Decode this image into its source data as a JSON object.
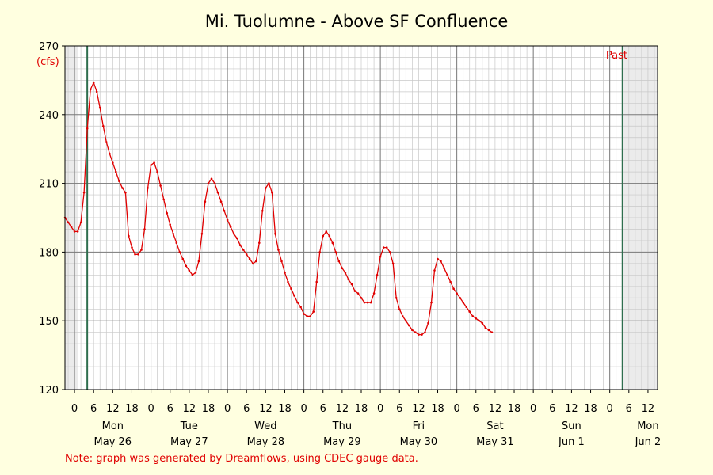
{
  "chart_data": {
    "type": "line",
    "title": "Mi. Tuolumne - Above SF Confluence",
    "ylabel": "(cfs)",
    "xlabel": "",
    "ylim": [
      120,
      270
    ],
    "y_ticks": [
      120,
      150,
      180,
      210,
      240,
      270
    ],
    "x_range_hours": [
      "May 25 21:00",
      "Jun 2 15:00"
    ],
    "hour_tick_labels": [
      "0",
      "6",
      "12",
      "18",
      "0",
      "6",
      "12",
      "18",
      "0",
      "6",
      "12",
      "18",
      "0",
      "6",
      "12",
      "18",
      "0",
      "6",
      "12",
      "18",
      "0",
      "6",
      "12",
      "18",
      "0",
      "6",
      "12",
      "18",
      "0",
      "6",
      "12"
    ],
    "day_labels": [
      {
        "weekday": "Mon",
        "date": "May 26"
      },
      {
        "weekday": "Tue",
        "date": "May 27"
      },
      {
        "weekday": "Wed",
        "date": "May 28"
      },
      {
        "weekday": "Thu",
        "date": "May 29"
      },
      {
        "weekday": "Fri",
        "date": "May 30"
      },
      {
        "weekday": "Sat",
        "date": "May 31"
      },
      {
        "weekday": "Sun",
        "date": "Jun 1"
      },
      {
        "weekday": "Mon",
        "date": "Jun 2"
      }
    ],
    "past_label": "Past",
    "note": "Note: graph was generated by Dreamflows, using CDEC gauge data.",
    "grid": true,
    "colors": {
      "line": "#e00000",
      "background": "#ffffe0",
      "plot_background": "#ffffff",
      "shaded_region": "#ebebeb",
      "marker_lines": "#2e6e4e"
    },
    "shaded_ranges": [
      [
        "May 25 21:00",
        "May 26 01:00"
      ],
      [
        "Jun 2 04:00",
        "Jun 2 15:00"
      ]
    ],
    "vertical_markers": [
      "May 26 04:00",
      "Jun 2 04:00"
    ],
    "series": [
      {
        "points": [
          [
            "May 25 21:00",
            195
          ],
          [
            "May 25 22:00",
            193
          ],
          [
            "May 25 23:00",
            191
          ],
          [
            "May 26 00:00",
            189
          ],
          [
            "May 26 01:00",
            189
          ],
          [
            "May 26 02:00",
            193
          ],
          [
            "May 26 03:00",
            206
          ],
          [
            "May 26 04:00",
            234
          ],
          [
            "May 26 05:00",
            251
          ],
          [
            "May 26 06:00",
            254
          ],
          [
            "May 26 07:00",
            250
          ],
          [
            "May 26 08:00",
            243
          ],
          [
            "May 26 09:00",
            235
          ],
          [
            "May 26 10:00",
            228
          ],
          [
            "May 26 11:00",
            223
          ],
          [
            "May 26 12:00",
            219
          ],
          [
            "May 26 13:00",
            215
          ],
          [
            "May 26 14:00",
            211
          ],
          [
            "May 26 15:00",
            208
          ],
          [
            "May 26 16:00",
            206
          ],
          [
            "May 26 17:00",
            187
          ],
          [
            "May 26 18:00",
            182
          ],
          [
            "May 26 19:00",
            179
          ],
          [
            "May 26 20:00",
            179
          ],
          [
            "May 26 21:00",
            181
          ],
          [
            "May 26 22:00",
            190
          ],
          [
            "May 26 23:00",
            208
          ],
          [
            "May 27 00:00",
            218
          ],
          [
            "May 27 01:00",
            219
          ],
          [
            "May 27 02:00",
            215
          ],
          [
            "May 27 03:00",
            209
          ],
          [
            "May 27 04:00",
            203
          ],
          [
            "May 27 05:00",
            197
          ],
          [
            "May 27 06:00",
            192
          ],
          [
            "May 27 07:00",
            188
          ],
          [
            "May 27 08:00",
            184
          ],
          [
            "May 27 09:00",
            180
          ],
          [
            "May 27 10:00",
            177
          ],
          [
            "May 27 11:00",
            174
          ],
          [
            "May 27 12:00",
            172
          ],
          [
            "May 27 13:00",
            170
          ],
          [
            "May 27 14:00",
            171
          ],
          [
            "May 27 15:00",
            176
          ],
          [
            "May 27 16:00",
            188
          ],
          [
            "May 27 17:00",
            202
          ],
          [
            "May 27 18:00",
            210
          ],
          [
            "May 27 19:00",
            212
          ],
          [
            "May 27 20:00",
            210
          ],
          [
            "May 27 21:00",
            206
          ],
          [
            "May 27 22:00",
            202
          ],
          [
            "May 27 23:00",
            198
          ],
          [
            "May 28 00:00",
            194
          ],
          [
            "May 28 01:00",
            191
          ],
          [
            "May 28 02:00",
            188
          ],
          [
            "May 28 03:00",
            186
          ],
          [
            "May 28 04:00",
            183
          ],
          [
            "May 28 05:00",
            181
          ],
          [
            "May 28 06:00",
            179
          ],
          [
            "May 28 07:00",
            177
          ],
          [
            "May 28 08:00",
            175
          ],
          [
            "May 28 09:00",
            176
          ],
          [
            "May 28 10:00",
            184
          ],
          [
            "May 28 11:00",
            198
          ],
          [
            "May 28 12:00",
            208
          ],
          [
            "May 28 13:00",
            210
          ],
          [
            "May 28 14:00",
            206
          ],
          [
            "May 28 15:00",
            188
          ],
          [
            "May 28 16:00",
            181
          ],
          [
            "May 28 17:00",
            176
          ],
          [
            "May 28 18:00",
            171
          ],
          [
            "May 28 19:00",
            167
          ],
          [
            "May 28 20:00",
            164
          ],
          [
            "May 28 21:00",
            161
          ],
          [
            "May 28 22:00",
            158
          ],
          [
            "May 28 23:00",
            156
          ],
          [
            "May 29 00:00",
            153
          ],
          [
            "May 29 01:00",
            152
          ],
          [
            "May 29 02:00",
            152
          ],
          [
            "May 29 03:00",
            154
          ],
          [
            "May 29 04:00",
            167
          ],
          [
            "May 29 05:00",
            180
          ],
          [
            "May 29 06:00",
            187
          ],
          [
            "May 29 07:00",
            189
          ],
          [
            "May 29 08:00",
            187
          ],
          [
            "May 29 09:00",
            184
          ],
          [
            "May 29 10:00",
            180
          ],
          [
            "May 29 11:00",
            176
          ],
          [
            "May 29 12:00",
            173
          ],
          [
            "May 29 13:00",
            171
          ],
          [
            "May 29 14:00",
            168
          ],
          [
            "May 29 15:00",
            166
          ],
          [
            "May 29 16:00",
            163
          ],
          [
            "May 29 17:00",
            162
          ],
          [
            "May 29 18:00",
            160
          ],
          [
            "May 29 19:00",
            158
          ],
          [
            "May 29 20:00",
            158
          ],
          [
            "May 29 21:00",
            158
          ],
          [
            "May 29 22:00",
            162
          ],
          [
            "May 29 23:00",
            170
          ],
          [
            "May 30 00:00",
            178
          ],
          [
            "May 30 01:00",
            182
          ],
          [
            "May 30 02:00",
            182
          ],
          [
            "May 30 03:00",
            180
          ],
          [
            "May 30 04:00",
            175
          ],
          [
            "May 30 05:00",
            160
          ],
          [
            "May 30 06:00",
            155
          ],
          [
            "May 30 07:00",
            152
          ],
          [
            "May 30 08:00",
            150
          ],
          [
            "May 30 09:00",
            148
          ],
          [
            "May 30 10:00",
            146
          ],
          [
            "May 30 11:00",
            145
          ],
          [
            "May 30 12:00",
            144
          ],
          [
            "May 30 13:00",
            144
          ],
          [
            "May 30 14:00",
            145
          ],
          [
            "May 30 15:00",
            149
          ],
          [
            "May 30 16:00",
            158
          ],
          [
            "May 30 17:00",
            172
          ],
          [
            "May 30 18:00",
            177
          ],
          [
            "May 30 19:00",
            176
          ],
          [
            "May 30 20:00",
            173
          ],
          [
            "May 30 21:00",
            170
          ],
          [
            "May 30 22:00",
            167
          ],
          [
            "May 30 23:00",
            164
          ],
          [
            "May 31 00:00",
            162
          ],
          [
            "May 31 01:00",
            160
          ],
          [
            "May 31 02:00",
            158
          ],
          [
            "May 31 03:00",
            156
          ],
          [
            "May 31 04:00",
            154
          ],
          [
            "May 31 05:00",
            152
          ],
          [
            "May 31 06:00",
            151
          ],
          [
            "May 31 07:00",
            150
          ],
          [
            "May 31 08:00",
            149
          ],
          [
            "May 31 09:00",
            147
          ],
          [
            "May 31 10:00",
            146
          ],
          [
            "May 31 11:00",
            145
          ]
        ]
      }
    ]
  }
}
